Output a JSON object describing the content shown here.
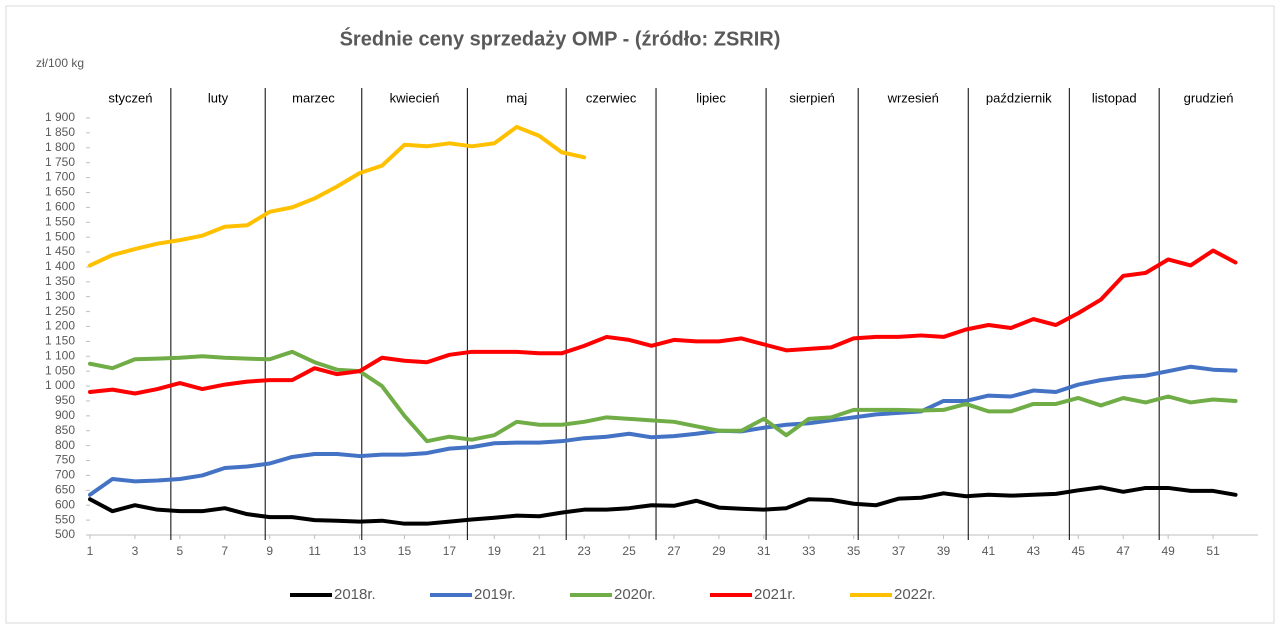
{
  "chart_data": {
    "type": "line",
    "title": "Średnie ceny sprzedaży OMP - (źródło: ZSRIR)",
    "y_label": "zł/100 kg",
    "months": [
      "styczeń",
      "luty",
      "marzec",
      "kwiecień",
      "maj",
      "czerwiec",
      "lipiec",
      "sierpień",
      "wrzesień",
      "październik",
      "listopad",
      "grudzień"
    ],
    "month_dividers": [
      4.6,
      8.8,
      13.1,
      17.8,
      22.2,
      26.2,
      31.1,
      35.2,
      40.1,
      44.6,
      48.6
    ],
    "x": [
      1,
      2,
      3,
      4,
      5,
      6,
      7,
      8,
      9,
      10,
      11,
      12,
      13,
      14,
      15,
      16,
      17,
      18,
      19,
      20,
      21,
      22,
      23,
      24,
      25,
      26,
      27,
      28,
      29,
      30,
      31,
      32,
      33,
      34,
      35,
      36,
      37,
      38,
      39,
      40,
      41,
      42,
      43,
      44,
      45,
      46,
      47,
      48,
      49,
      50,
      51,
      52
    ],
    "xlim": [
      1,
      53
    ],
    "xticks": [
      1,
      3,
      5,
      7,
      9,
      11,
      13,
      15,
      17,
      19,
      21,
      23,
      25,
      27,
      29,
      31,
      33,
      35,
      37,
      39,
      41,
      43,
      45,
      47,
      49,
      51
    ],
    "ylim": [
      500,
      1900
    ],
    "yticks": [
      500,
      550,
      600,
      650,
      700,
      750,
      800,
      850,
      900,
      950,
      {
        "value": 1000,
        "label": "1 000"
      },
      {
        "value": 1050,
        "label": "1 050"
      },
      {
        "value": 1100,
        "label": "1 100"
      },
      {
        "value": 1150,
        "label": "1 150"
      },
      {
        "value": 1200,
        "label": "1 200"
      },
      {
        "value": 1250,
        "label": "1 250"
      },
      {
        "value": 1300,
        "label": "1 300"
      },
      {
        "value": 1350,
        "label": "1 350"
      },
      {
        "value": 1400,
        "label": "1 400"
      },
      {
        "value": 1450,
        "label": "1 450"
      },
      {
        "value": 1500,
        "label": "1 500"
      },
      {
        "value": 1550,
        "label": "1 550"
      },
      {
        "value": 1600,
        "label": "1 600"
      },
      {
        "value": 1650,
        "label": "1 650"
      },
      {
        "value": 1700,
        "label": "1 700"
      },
      {
        "value": 1750,
        "label": "1 750"
      },
      {
        "value": 1800,
        "label": "1 800"
      },
      {
        "value": 1850,
        "label": "1 850"
      },
      {
        "value": 1900,
        "label": "1 900"
      }
    ],
    "series": [
      {
        "name": "2018r.",
        "color": "#000000",
        "values": [
          620,
          580,
          600,
          585,
          580,
          580,
          590,
          570,
          560,
          560,
          550,
          548,
          545,
          548,
          538,
          538,
          545,
          552,
          558,
          565,
          563,
          575,
          585,
          585,
          590,
          600,
          598,
          615,
          592,
          588,
          585,
          590,
          620,
          618,
          605,
          600,
          622,
          625,
          640,
          630,
          635,
          632,
          635,
          638,
          650,
          660,
          645,
          658,
          658,
          648,
          648,
          635
        ]
      },
      {
        "name": "2019r.",
        "color": "#4472c4",
        "values": [
          635,
          688,
          680,
          683,
          688,
          700,
          725,
          730,
          740,
          762,
          772,
          772,
          765,
          770,
          770,
          775,
          790,
          795,
          808,
          810,
          810,
          815,
          825,
          830,
          840,
          828,
          832,
          840,
          850,
          848,
          860,
          870,
          875,
          885,
          895,
          905,
          910,
          915,
          950,
          950,
          968,
          965,
          985,
          980,
          1005,
          1020,
          1030,
          1035,
          1050,
          1065,
          1055,
          1052
        ]
      },
      {
        "name": "2020r.",
        "color": "#70ad47",
        "values": [
          1075,
          1060,
          1090,
          1092,
          1095,
          1100,
          1095,
          1092,
          1090,
          1115,
          1080,
          1055,
          1050,
          1000,
          900,
          815,
          830,
          820,
          835,
          880,
          870,
          870,
          880,
          895,
          890,
          885,
          880,
          865,
          850,
          850,
          890,
          835,
          890,
          895,
          920,
          920,
          920,
          918,
          920,
          940,
          915,
          915,
          940,
          940,
          960,
          935,
          960,
          945,
          965,
          945,
          955,
          950
        ]
      },
      {
        "name": "2021r.",
        "color": "#ff0000",
        "values": [
          980,
          988,
          975,
          990,
          1010,
          990,
          1005,
          1015,
          1020,
          1020,
          1060,
          1040,
          1050,
          1095,
          1085,
          1080,
          1105,
          1115,
          1115,
          1115,
          1110,
          1110,
          1135,
          1165,
          1155,
          1135,
          1155,
          1150,
          1150,
          1160,
          1140,
          1120,
          1125,
          1130,
          1160,
          1165,
          1165,
          1170,
          1165,
          1190,
          1205,
          1195,
          1225,
          1205,
          1245,
          1290,
          1370,
          1380,
          1425,
          1405,
          1455,
          1415
        ]
      },
      {
        "name": "2022r.",
        "color": "#ffc000",
        "values": [
          1405,
          1440,
          1460,
          1478,
          1490,
          1505,
          1535,
          1540,
          1585,
          1600,
          1630,
          1670,
          1715,
          1740,
          1810,
          1805,
          1815,
          1805,
          1815,
          1870,
          1840,
          1785,
          1768,
          null,
          null,
          null,
          null,
          null,
          null,
          null,
          null,
          null,
          null,
          null,
          null,
          null,
          null,
          null,
          null,
          null,
          null,
          null,
          null,
          null,
          null,
          null,
          null,
          null,
          null,
          null,
          null,
          null
        ]
      }
    ]
  }
}
